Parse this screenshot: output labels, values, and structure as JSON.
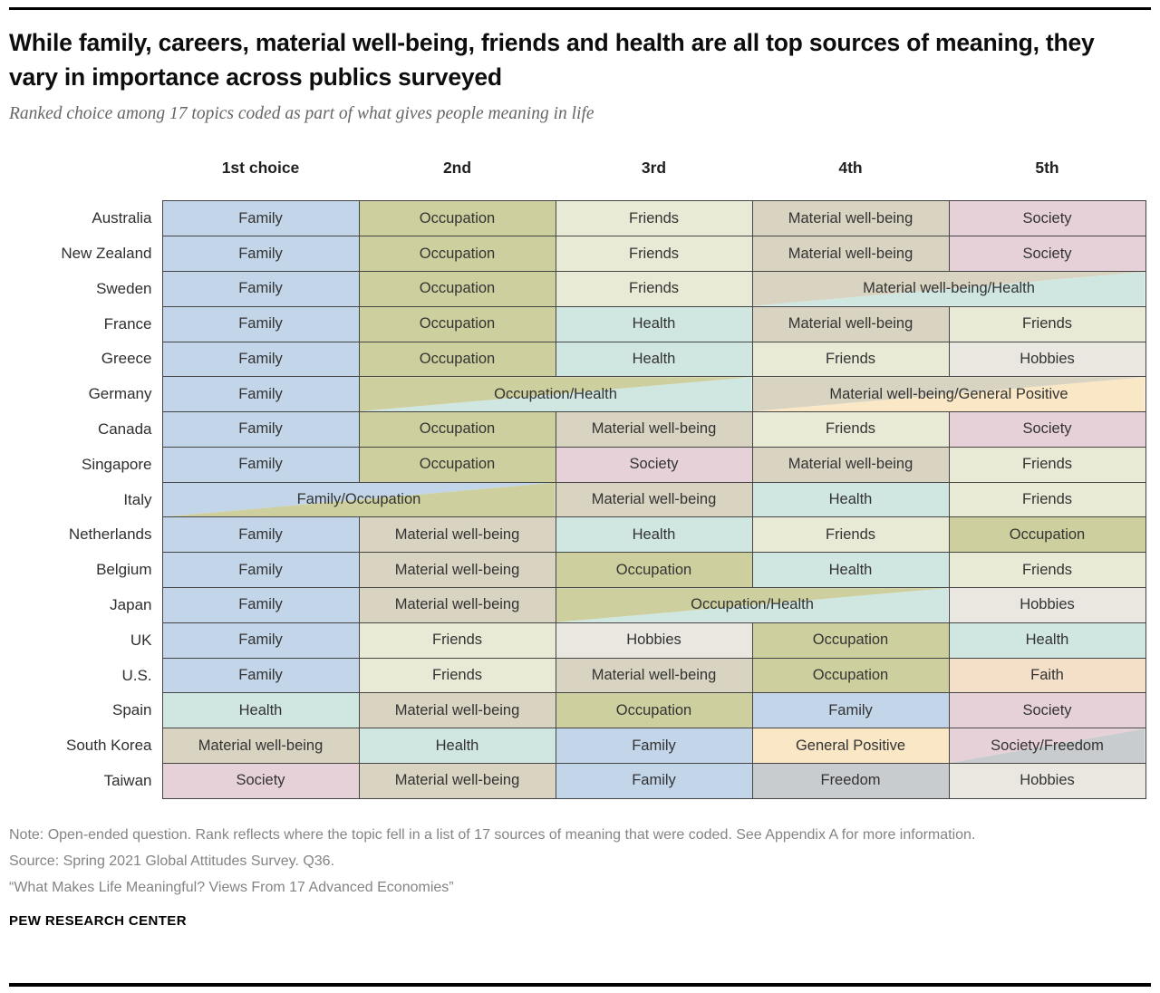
{
  "header": {
    "title": "While family, careers, material well-being, friends and health are all top sources of meaning, they vary in importance across publics surveyed",
    "subtitle": "Ranked choice among 17 topics coded as part of what gives people meaning in life"
  },
  "footer": {
    "note": "Note: Open-ended question. Rank reflects where the topic fell in a list of 17 sources of meaning that were coded. See Appendix A for more information.",
    "source": "Source: Spring 2021 Global Attitudes Survey. Q36.",
    "report": "“What Makes Life Meaningful? Views From 17 Advanced Economies”",
    "brand": "PEW RESEARCH CENTER"
  },
  "chart_data": {
    "type": "table",
    "title": "While family, careers, material well-being, friends and health are all top sources of meaning, they vary in importance across publics surveyed",
    "subtitle": "Ranked choice among 17 topics coded as part of what gives people meaning in life",
    "columns": [
      "1st choice",
      "2nd",
      "3rd",
      "4th",
      "5th"
    ],
    "category_colors": {
      "family": "#c3d5e8",
      "occupation": "#cdd09e",
      "friends": "#e8ead5",
      "material": "#d9d3c1",
      "society": "#e7d1d8",
      "health": "#d0e6e1",
      "hobbies": "#eae7e0",
      "general": "#f9e7c6",
      "faith": "#f4dfc9",
      "freedom": "#c9ccce"
    },
    "rows": [
      {
        "country": "Australia",
        "cells": [
          {
            "label": "Family",
            "cats": [
              "family"
            ],
            "span": 1
          },
          {
            "label": "Occupation",
            "cats": [
              "occupation"
            ],
            "span": 1
          },
          {
            "label": "Friends",
            "cats": [
              "friends"
            ],
            "span": 1
          },
          {
            "label": "Material well-being",
            "cats": [
              "material"
            ],
            "span": 1
          },
          {
            "label": "Society",
            "cats": [
              "society"
            ],
            "span": 1
          }
        ]
      },
      {
        "country": "New Zealand",
        "cells": [
          {
            "label": "Family",
            "cats": [
              "family"
            ],
            "span": 1
          },
          {
            "label": "Occupation",
            "cats": [
              "occupation"
            ],
            "span": 1
          },
          {
            "label": "Friends",
            "cats": [
              "friends"
            ],
            "span": 1
          },
          {
            "label": "Material well-being",
            "cats": [
              "material"
            ],
            "span": 1
          },
          {
            "label": "Society",
            "cats": [
              "society"
            ],
            "span": 1
          }
        ]
      },
      {
        "country": "Sweden",
        "cells": [
          {
            "label": "Family",
            "cats": [
              "family"
            ],
            "span": 1
          },
          {
            "label": "Occupation",
            "cats": [
              "occupation"
            ],
            "span": 1
          },
          {
            "label": "Friends",
            "cats": [
              "friends"
            ],
            "span": 1
          },
          {
            "label": "Material well-being/Health",
            "cats": [
              "material",
              "health"
            ],
            "span": 2
          }
        ]
      },
      {
        "country": "France",
        "cells": [
          {
            "label": "Family",
            "cats": [
              "family"
            ],
            "span": 1
          },
          {
            "label": "Occupation",
            "cats": [
              "occupation"
            ],
            "span": 1
          },
          {
            "label": "Health",
            "cats": [
              "health"
            ],
            "span": 1
          },
          {
            "label": "Material well-being",
            "cats": [
              "material"
            ],
            "span": 1
          },
          {
            "label": "Friends",
            "cats": [
              "friends"
            ],
            "span": 1
          }
        ]
      },
      {
        "country": "Greece",
        "cells": [
          {
            "label": "Family",
            "cats": [
              "family"
            ],
            "span": 1
          },
          {
            "label": "Occupation",
            "cats": [
              "occupation"
            ],
            "span": 1
          },
          {
            "label": "Health",
            "cats": [
              "health"
            ],
            "span": 1
          },
          {
            "label": "Friends",
            "cats": [
              "friends"
            ],
            "span": 1
          },
          {
            "label": "Hobbies",
            "cats": [
              "hobbies"
            ],
            "span": 1
          }
        ]
      },
      {
        "country": "Germany",
        "cells": [
          {
            "label": "Family",
            "cats": [
              "family"
            ],
            "span": 1
          },
          {
            "label": "Occupation/Health",
            "cats": [
              "occupation",
              "health"
            ],
            "span": 2
          },
          {
            "label": "Material well-being/General Positive",
            "cats": [
              "material",
              "general"
            ],
            "span": 2
          }
        ]
      },
      {
        "country": "Canada",
        "cells": [
          {
            "label": "Family",
            "cats": [
              "family"
            ],
            "span": 1
          },
          {
            "label": "Occupation",
            "cats": [
              "occupation"
            ],
            "span": 1
          },
          {
            "label": "Material well-being",
            "cats": [
              "material"
            ],
            "span": 1
          },
          {
            "label": "Friends",
            "cats": [
              "friends"
            ],
            "span": 1
          },
          {
            "label": "Society",
            "cats": [
              "society"
            ],
            "span": 1
          }
        ]
      },
      {
        "country": "Singapore",
        "cells": [
          {
            "label": "Family",
            "cats": [
              "family"
            ],
            "span": 1
          },
          {
            "label": "Occupation",
            "cats": [
              "occupation"
            ],
            "span": 1
          },
          {
            "label": "Society",
            "cats": [
              "society"
            ],
            "span": 1
          },
          {
            "label": "Material well-being",
            "cats": [
              "material"
            ],
            "span": 1
          },
          {
            "label": "Friends",
            "cats": [
              "friends"
            ],
            "span": 1
          }
        ]
      },
      {
        "country": "Italy",
        "cells": [
          {
            "label": "Family/Occupation",
            "cats": [
              "family",
              "occupation"
            ],
            "span": 2
          },
          {
            "label": "Material well-being",
            "cats": [
              "material"
            ],
            "span": 1
          },
          {
            "label": "Health",
            "cats": [
              "health"
            ],
            "span": 1
          },
          {
            "label": "Friends",
            "cats": [
              "friends"
            ],
            "span": 1
          }
        ]
      },
      {
        "country": "Netherlands",
        "cells": [
          {
            "label": "Family",
            "cats": [
              "family"
            ],
            "span": 1
          },
          {
            "label": "Material well-being",
            "cats": [
              "material"
            ],
            "span": 1
          },
          {
            "label": "Health",
            "cats": [
              "health"
            ],
            "span": 1
          },
          {
            "label": "Friends",
            "cats": [
              "friends"
            ],
            "span": 1
          },
          {
            "label": "Occupation",
            "cats": [
              "occupation"
            ],
            "span": 1
          }
        ]
      },
      {
        "country": "Belgium",
        "cells": [
          {
            "label": "Family",
            "cats": [
              "family"
            ],
            "span": 1
          },
          {
            "label": "Material well-being",
            "cats": [
              "material"
            ],
            "span": 1
          },
          {
            "label": "Occupation",
            "cats": [
              "occupation"
            ],
            "span": 1
          },
          {
            "label": "Health",
            "cats": [
              "health"
            ],
            "span": 1
          },
          {
            "label": "Friends",
            "cats": [
              "friends"
            ],
            "span": 1
          }
        ]
      },
      {
        "country": "Japan",
        "cells": [
          {
            "label": "Family",
            "cats": [
              "family"
            ],
            "span": 1
          },
          {
            "label": "Material well-being",
            "cats": [
              "material"
            ],
            "span": 1
          },
          {
            "label": "Occupation/Health",
            "cats": [
              "occupation",
              "health"
            ],
            "span": 2
          },
          {
            "label": "Hobbies",
            "cats": [
              "hobbies"
            ],
            "span": 1
          }
        ]
      },
      {
        "country": "UK",
        "cells": [
          {
            "label": "Family",
            "cats": [
              "family"
            ],
            "span": 1
          },
          {
            "label": "Friends",
            "cats": [
              "friends"
            ],
            "span": 1
          },
          {
            "label": "Hobbies",
            "cats": [
              "hobbies"
            ],
            "span": 1
          },
          {
            "label": "Occupation",
            "cats": [
              "occupation"
            ],
            "span": 1
          },
          {
            "label": "Health",
            "cats": [
              "health"
            ],
            "span": 1
          }
        ]
      },
      {
        "country": "U.S.",
        "cells": [
          {
            "label": "Family",
            "cats": [
              "family"
            ],
            "span": 1
          },
          {
            "label": "Friends",
            "cats": [
              "friends"
            ],
            "span": 1
          },
          {
            "label": "Material well-being",
            "cats": [
              "material"
            ],
            "span": 1
          },
          {
            "label": "Occupation",
            "cats": [
              "occupation"
            ],
            "span": 1
          },
          {
            "label": "Faith",
            "cats": [
              "faith"
            ],
            "span": 1
          }
        ]
      },
      {
        "country": "Spain",
        "cells": [
          {
            "label": "Health",
            "cats": [
              "health"
            ],
            "span": 1
          },
          {
            "label": "Material well-being",
            "cats": [
              "material"
            ],
            "span": 1
          },
          {
            "label": "Occupation",
            "cats": [
              "occupation"
            ],
            "span": 1
          },
          {
            "label": "Family",
            "cats": [
              "family"
            ],
            "span": 1
          },
          {
            "label": "Society",
            "cats": [
              "society"
            ],
            "span": 1
          }
        ]
      },
      {
        "country": "South Korea",
        "cells": [
          {
            "label": "Material well-being",
            "cats": [
              "material"
            ],
            "span": 1
          },
          {
            "label": "Health",
            "cats": [
              "health"
            ],
            "span": 1
          },
          {
            "label": "Family",
            "cats": [
              "family"
            ],
            "span": 1
          },
          {
            "label": "General Positive",
            "cats": [
              "general"
            ],
            "span": 1
          },
          {
            "label": "Society/Freedom",
            "cats": [
              "society",
              "freedom"
            ],
            "span": 1
          }
        ]
      },
      {
        "country": "Taiwan",
        "cells": [
          {
            "label": "Society",
            "cats": [
              "society"
            ],
            "span": 1
          },
          {
            "label": "Material well-being",
            "cats": [
              "material"
            ],
            "span": 1
          },
          {
            "label": "Family",
            "cats": [
              "family"
            ],
            "span": 1
          },
          {
            "label": "Freedom",
            "cats": [
              "freedom"
            ],
            "span": 1
          },
          {
            "label": "Hobbies",
            "cats": [
              "hobbies"
            ],
            "span": 1
          }
        ]
      }
    ]
  }
}
